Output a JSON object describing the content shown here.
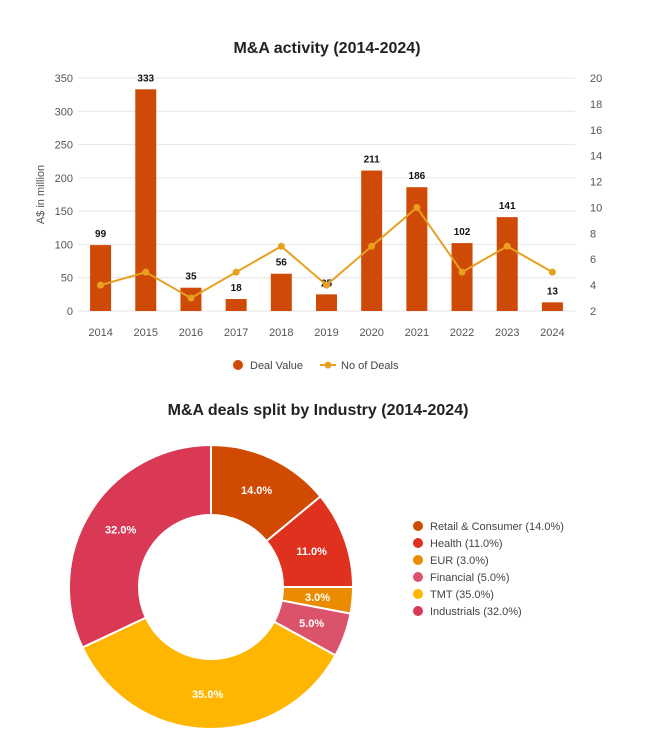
{
  "colors": {
    "bar": "#CF4A06",
    "line": "#E8A020",
    "axis_text": "#555555",
    "title_text": "#222222"
  },
  "chart_data": [
    {
      "type": "bar",
      "title": "M&A activity (2014-2024)",
      "ylabel": "A$ in million",
      "categories": [
        "2014",
        "2015",
        "2016",
        "2017",
        "2018",
        "2019",
        "2020",
        "2021",
        "2022",
        "2023",
        "2024"
      ],
      "series": [
        {
          "name": "Deal Value",
          "kind": "bar",
          "axis": "left",
          "values": [
            99,
            333,
            35,
            18,
            56,
            25,
            211,
            186,
            102,
            141,
            13
          ]
        },
        {
          "name": "No of Deals",
          "kind": "line",
          "axis": "right",
          "values": [
            4,
            5,
            3,
            5,
            7,
            4,
            7,
            10,
            5,
            7,
            5
          ]
        }
      ],
      "ylim": [
        0,
        350
      ],
      "yticks": [
        0,
        50,
        100,
        150,
        200,
        250,
        300,
        350
      ],
      "y2lim": [
        2,
        20
      ],
      "y2ticks": [
        2,
        4,
        6,
        8,
        10,
        12,
        14,
        16,
        18,
        20
      ],
      "legend": [
        "Deal Value",
        "No of Deals"
      ]
    },
    {
      "type": "pie",
      "title": "M&A deals split by Industry (2014-2024)",
      "labels": [
        "Retail & Consumer",
        "Health",
        "EUR",
        "Financial",
        "TMT",
        "Industrials"
      ],
      "values": [
        14.0,
        11.0,
        3.0,
        5.0,
        35.0,
        32.0
      ],
      "value_labels": [
        "14.0%",
        "11.0%",
        "3.0%",
        "5.0%",
        "35.0%",
        "32.0%"
      ],
      "legend_labels": [
        "Retail & Consumer (14.0%)",
        "Health (11.0%)",
        "EUR (3.0%)",
        "Financial (5.0%)",
        "TMT (35.0%)",
        "Industrials (32.0%)"
      ],
      "colors": [
        "#D04A02",
        "#E0301E",
        "#EB8C00",
        "#DB536A",
        "#FFB600",
        "#D93954"
      ]
    }
  ]
}
